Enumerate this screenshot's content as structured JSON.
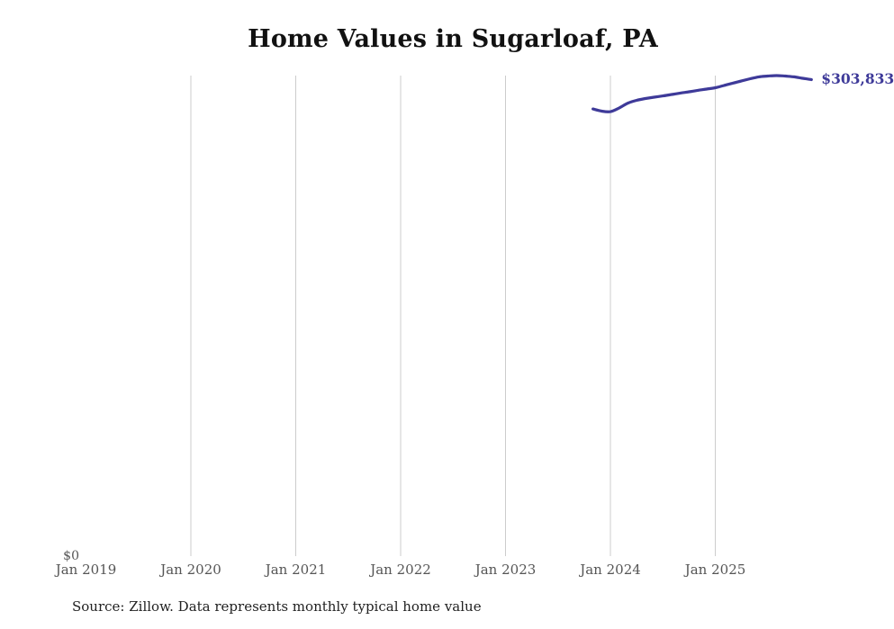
{
  "chart_data": {
    "type": "line",
    "title": "Home Values in Sugarloaf, PA",
    "source_note": "Source: Zillow. Data represents monthly typical home value",
    "end_label": "$303,833",
    "x": [
      "Nov 2023",
      "Dec 2023",
      "Jan 2024",
      "Feb 2024",
      "Mar 2024",
      "Apr 2024",
      "May 2024",
      "Jun 2024",
      "Jul 2024",
      "Aug 2024",
      "Sep 2024",
      "Oct 2024",
      "Nov 2024",
      "Dec 2024",
      "Jan 2025",
      "Feb 2025",
      "Mar 2025",
      "Apr 2025",
      "May 2025",
      "Jun 2025",
      "Jul 2025",
      "Aug 2025",
      "Sep 2025",
      "Oct 2025",
      "Nov 2025",
      "Dec 2025"
    ],
    "values": [
      285200,
      283800,
      283500,
      285800,
      288900,
      290700,
      291800,
      292700,
      293500,
      294400,
      295300,
      296100,
      297000,
      297800,
      298700,
      300100,
      301600,
      303000,
      304400,
      305600,
      306100,
      306400,
      306100,
      305600,
      304700,
      303833
    ],
    "series_name": "Typical home value",
    "x_axis": {
      "tick_labels": [
        "Jan 2019",
        "Jan 2020",
        "Jan 2021",
        "Jan 2022",
        "Jan 2023",
        "Jan 2024",
        "Jan 2025"
      ],
      "tick_years": [
        2019,
        2020,
        2021,
        2022,
        2023,
        2024,
        2025
      ],
      "gridline_years": [
        2020,
        2021,
        2022,
        2023,
        2024,
        2025
      ]
    },
    "y_axis": {
      "tick_labels": [
        "$0"
      ],
      "min": 0
    },
    "ylim": [
      0,
      306400
    ],
    "grid": "vertical-only",
    "legend": "none",
    "colors": {
      "line": "#3e3a99",
      "gridline": "#cccccc",
      "tick_text": "#555555",
      "title_text": "#111111",
      "source_text": "#222222"
    }
  }
}
